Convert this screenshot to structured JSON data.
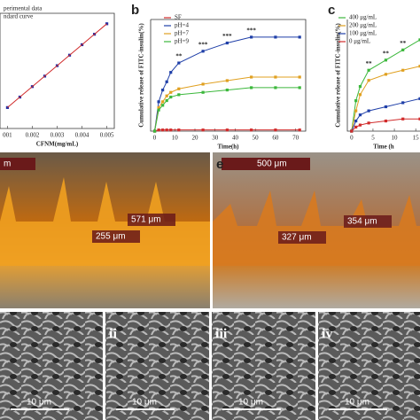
{
  "chart_data": [
    {
      "type": "line",
      "legend": [
        "perimental data",
        "ndard curve"
      ],
      "xlabel": "CFNM(mg/mL)",
      "x": [
        0.001,
        0.0015,
        0.002,
        0.0025,
        0.003,
        0.0035,
        0.004,
        0.0045,
        0.005
      ],
      "xlim": [
        0.0007,
        0.0053
      ],
      "ylim": [
        0,
        1.1
      ],
      "xticks": [
        {
          "value": 0.001,
          "label": "001"
        },
        0.002,
        0.003,
        0.004,
        0.005
      ],
      "series": [
        {
          "name": "perimental data",
          "color": "#1f2fa8",
          "values": [
            0.2,
            0.3,
            0.4,
            0.5,
            0.6,
            0.7,
            0.8,
            0.9,
            1.0
          ]
        },
        {
          "name": "ndard curve",
          "color": "#d12b2b",
          "values": [
            0.2,
            0.3,
            0.4,
            0.5,
            0.6,
            0.7,
            0.8,
            0.9,
            1.0
          ]
        }
      ]
    },
    {
      "type": "line",
      "panel_label": "b",
      "xlabel": "Time(h)",
      "ylabel": "Cumulative release of FITC-insulin(%)",
      "x": [
        0,
        2,
        4,
        6,
        8,
        12,
        24,
        36,
        48,
        60,
        72
      ],
      "xlim": [
        -2,
        75
      ],
      "ylim": [
        0,
        95
      ],
      "xticks": [
        0,
        10,
        20,
        30,
        40,
        50,
        60,
        70
      ],
      "significance": [
        null,
        null,
        null,
        null,
        null,
        "**",
        "***",
        "***",
        "***",
        null,
        null
      ],
      "series": [
        {
          "name": "SF",
          "color": "#d12b2b",
          "values": [
            0,
            1,
            1,
            1,
            1,
            1,
            1,
            1,
            1,
            1,
            1
          ]
        },
        {
          "name": "pH=4",
          "color": "#1f3fa8",
          "values": [
            0,
            25,
            35,
            42,
            50,
            58,
            68,
            75,
            80,
            80,
            80
          ]
        },
        {
          "name": "pH=7",
          "color": "#e0a020",
          "values": [
            0,
            20,
            25,
            30,
            33,
            36,
            40,
            43,
            46,
            46,
            46
          ]
        },
        {
          "name": "pH=9",
          "color": "#3cb83c",
          "values": [
            0,
            18,
            22,
            26,
            29,
            31,
            33,
            35,
            37,
            37,
            37
          ]
        }
      ]
    },
    {
      "type": "line",
      "panel_label": "c",
      "xlabel": "Time (h",
      "ylabel": "Cumulative release of FITC-insulin(%)",
      "x": [
        0,
        1,
        2,
        4,
        8,
        12,
        16
      ],
      "xlim": [
        -1,
        16
      ],
      "ylim": [
        0,
        55
      ],
      "xticks": [
        0,
        5,
        10,
        15
      ],
      "significance": [
        null,
        null,
        null,
        "**",
        "**",
        "**",
        null
      ],
      "series": [
        {
          "name": "400 μg/mL",
          "color": "#3cb83c",
          "values": [
            0,
            15,
            22,
            30,
            35,
            40,
            45
          ]
        },
        {
          "name": "200 μg/mL",
          "color": "#e0a020",
          "values": [
            0,
            10,
            18,
            25,
            28,
            30,
            32
          ]
        },
        {
          "name": "100 μg/mL",
          "color": "#1f3fa8",
          "values": [
            0,
            5,
            8,
            10,
            12,
            14,
            16
          ]
        },
        {
          "name": "0 μg/mL",
          "color": "#d12b2b",
          "values": [
            0,
            2,
            3,
            4,
            5,
            6,
            6
          ]
        }
      ]
    }
  ],
  "photos": [
    {
      "scale_bar": "m",
      "measurements": [
        "571 μm",
        "255 μm"
      ]
    },
    {
      "panel_label": "e",
      "scale_bar": "500 μm",
      "measurements": [
        "354 μm",
        "327 μm"
      ]
    }
  ],
  "sem": [
    {
      "scale_bar": "10 μm"
    },
    {
      "label": "ii",
      "scale_bar": "10 μm"
    },
    {
      "label": "iii",
      "scale_bar": "10 μm"
    },
    {
      "label": "iv",
      "scale_bar": "10 μm"
    }
  ]
}
